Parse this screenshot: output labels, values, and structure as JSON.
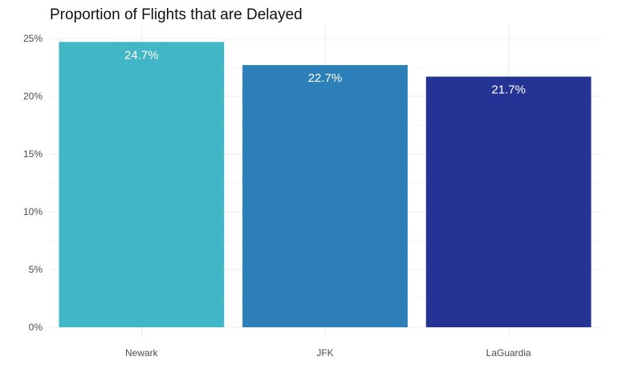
{
  "chart_data": {
    "type": "bar",
    "title": "Proportion of Flights that are Delayed",
    "xlabel": "",
    "ylabel": "",
    "categories": [
      "Newark",
      "JFK",
      "LaGuardia"
    ],
    "values": [
      24.7,
      22.7,
      21.7
    ],
    "value_labels": [
      "24.7%",
      "22.7%",
      "21.7%"
    ],
    "colors": [
      "#41b6c4",
      "#2c7fb8",
      "#253494"
    ],
    "ylim": [
      0,
      25
    ],
    "yticks": [
      0,
      5,
      10,
      15,
      20,
      25
    ],
    "ytick_labels": [
      "0%",
      "5%",
      "10%",
      "15%",
      "20%",
      "25%"
    ],
    "grid": true,
    "legend": "none"
  }
}
